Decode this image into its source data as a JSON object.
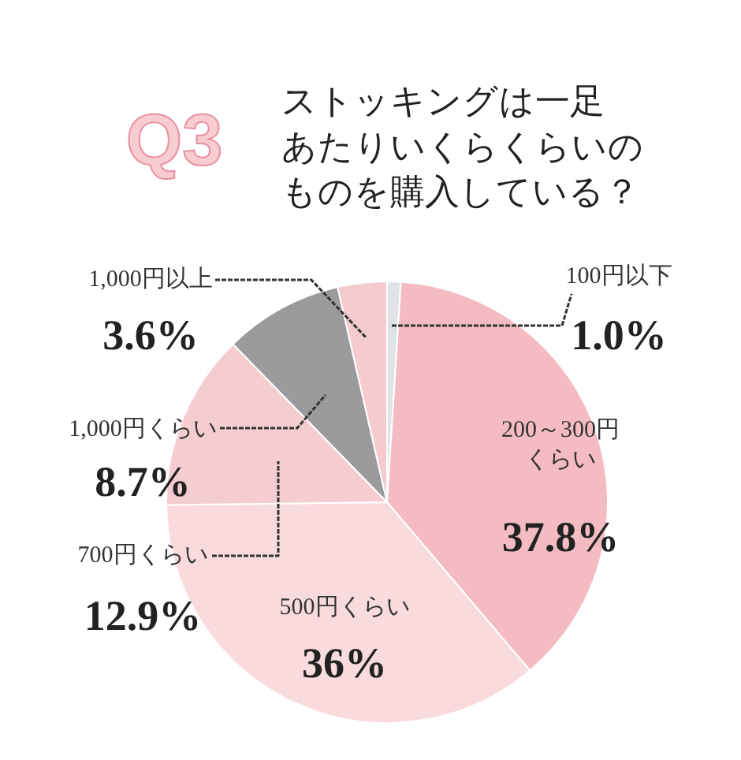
{
  "chart_data": {
    "type": "pie",
    "title": "Q3",
    "subtitle": "ストッキングは一足あたりいくらくらいのものを購入している？",
    "categories": [
      "100円以下",
      "200～300円くらい",
      "500円くらい",
      "700円くらい",
      "1,000円くらい",
      "1,000円以上"
    ],
    "values": [
      1.0,
      37.8,
      36,
      12.9,
      8.7,
      3.6
    ],
    "value_labels": [
      "1.0%",
      "37.8%",
      "36%",
      "12.9%",
      "8.7%",
      "3.6%"
    ],
    "colors": [
      "#dfe3e6",
      "#f4bcc2",
      "#f9dadd",
      "#f5cdd1",
      "#9b9b9d",
      "#f5cbcf"
    ]
  }
}
